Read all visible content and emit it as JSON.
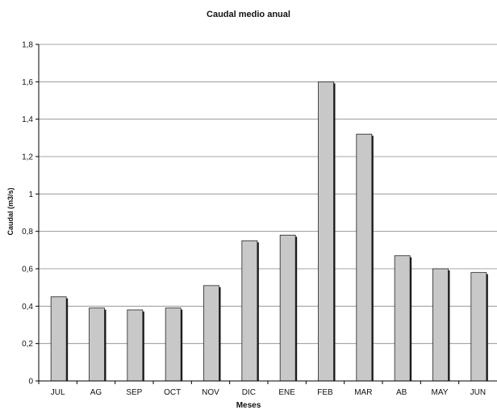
{
  "chart_data": {
    "type": "bar",
    "title": "Caudal medio anual",
    "xlabel": "Meses",
    "ylabel": "Caudal (m3/s)",
    "categories": [
      "JUL",
      "AG",
      "SEP",
      "OCT",
      "NOV",
      "DIC",
      "ENE",
      "FEB",
      "MAR",
      "AB",
      "MAY",
      "JUN"
    ],
    "values": [
      0.45,
      0.39,
      0.38,
      0.39,
      0.51,
      0.75,
      0.78,
      1.6,
      1.32,
      0.67,
      0.6,
      0.58
    ],
    "ylim": [
      0,
      1.8
    ],
    "yticks": [
      "0",
      "0,2",
      "0,4",
      "0,6",
      "0,8",
      "1",
      "1,2",
      "1,4",
      "1,6",
      "1,8"
    ],
    "grid": true,
    "legend": "none",
    "colors": {
      "bar": "#c8c8c8",
      "bar_shadow": "#1a1a1a",
      "grid": "#888888",
      "axis": "#000000"
    }
  }
}
